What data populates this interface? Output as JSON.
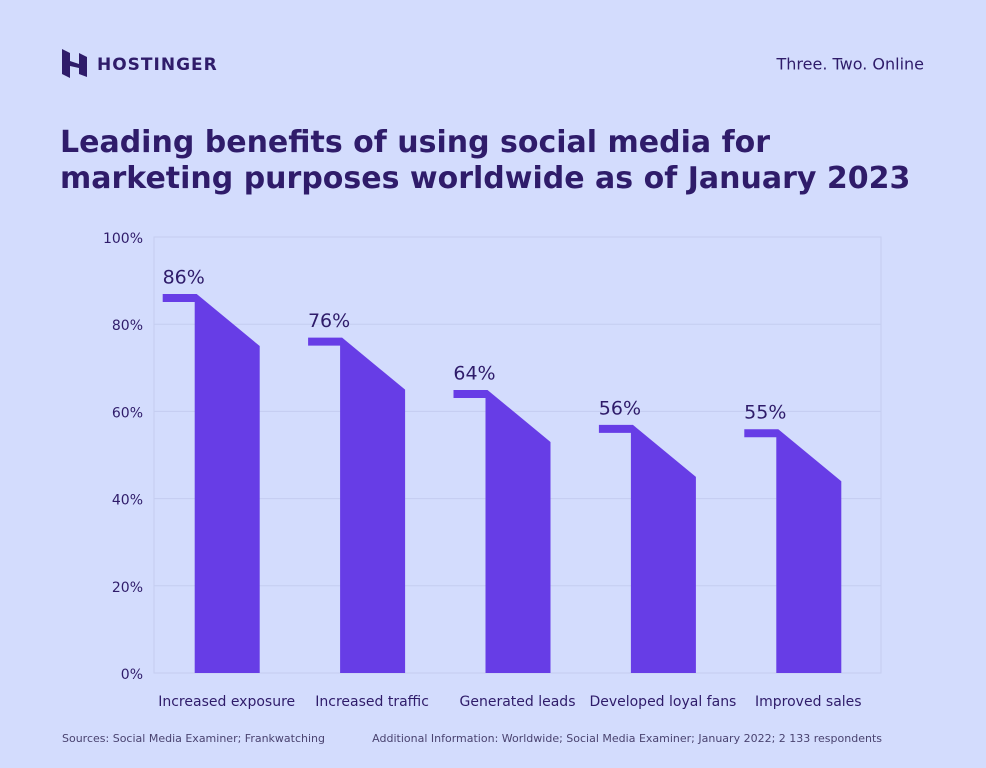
{
  "brand": "HOSTINGER",
  "tagline": "Three. Two. Online",
  "chart_data": {
    "type": "bar",
    "title": "Leading benefits of using social media for marketing purposes worldwide as of January 2023",
    "categories": [
      "Increased exposure",
      "Increased traffic",
      "Generated leads",
      "Developed loyal fans",
      "Improved sales"
    ],
    "values": [
      86,
      76,
      64,
      56,
      55
    ],
    "value_labels": [
      "86%",
      "76%",
      "64%",
      "56%",
      "55%"
    ],
    "color": "#673de6",
    "ylim": [
      0,
      100
    ],
    "yticks": [
      {
        "value": 0,
        "label": "0%"
      },
      {
        "value": 20,
        "label": "20%"
      },
      {
        "value": 40,
        "label": "40%"
      },
      {
        "value": 60,
        "label": "60%"
      },
      {
        "value": 80,
        "label": "80%"
      },
      {
        "value": 100,
        "label": "100%"
      }
    ],
    "grid": true
  },
  "footer": {
    "sources": "Sources: Social Media Examiner; Frankwatching",
    "additional": "Additional Information: Worldwide; Social Media Examiner; January 2022; 2 133 respondents"
  }
}
